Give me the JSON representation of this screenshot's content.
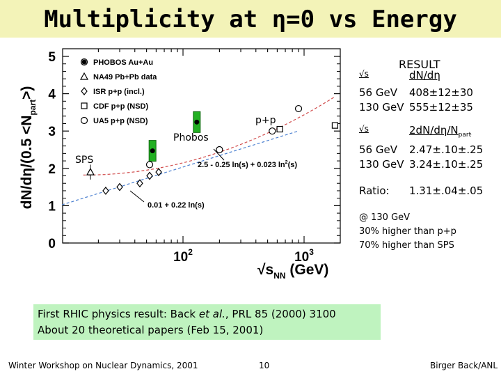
{
  "title": "Multiplicity at η=0 vs Energy",
  "chart_data": {
    "type": "scatter",
    "ylabel": "dN/dη/(0.5 <N",
    "ylabel_sub": "part",
    "ylabel_end": ">)",
    "xlabel": "√s",
    "xlabel_sub": "NN",
    "xlabel_unit": " (GeV)",
    "x_ticks": [
      {
        "base": "10",
        "exp": "2"
      },
      {
        "base": "10",
        "exp": "3"
      }
    ],
    "y_ticks": [
      "0",
      "1",
      "2",
      "3",
      "4",
      "5"
    ],
    "ylim": [
      0,
      5
    ],
    "legend": [
      {
        "marker": "star",
        "label": "PHOBOS Au+Au"
      },
      {
        "marker": "triangle",
        "label": "NA49 Pb+Pb data"
      },
      {
        "marker": "diamond",
        "label": "ISR p+p (incl.)"
      },
      {
        "marker": "square",
        "label": "CDF p+p (NSD)"
      },
      {
        "marker": "circle",
        "label": "UA5 p+p (NSD)"
      }
    ],
    "annotations": {
      "phobos": "Phobos",
      "sps": "SPS",
      "pp": "p+p",
      "fit_high": "2.5 - 0.25 ln(s) + 0.023 ln",
      "fit_high_sup": "2",
      "fit_high_end": "(s)",
      "fit_low": "0.01 + 0.22 ln(s)"
    },
    "series": [
      {
        "name": "PHOBOS Au+Au",
        "marker": "star",
        "x": [
          56,
          130
        ],
        "y": [
          2.47,
          3.24
        ],
        "err": [
          0.25,
          0.25
        ]
      },
      {
        "name": "NA49 Pb+Pb data",
        "marker": "triangle",
        "x": [
          17.2
        ],
        "y": [
          1.9
        ],
        "err": [
          0.2
        ]
      },
      {
        "name": "ISR p+p (incl.)",
        "marker": "diamond",
        "x": [
          23,
          30,
          44,
          53,
          63
        ],
        "y": [
          1.4,
          1.5,
          1.6,
          1.8,
          1.9
        ]
      },
      {
        "name": "CDF p+p (NSD)",
        "marker": "square",
        "x": [
          630,
          1800
        ],
        "y": [
          3.05,
          3.15
        ]
      },
      {
        "name": "UA5 p+p (NSD)",
        "marker": "circle",
        "x": [
          53,
          200,
          546,
          900
        ],
        "y": [
          2.1,
          2.5,
          3.0,
          3.6
        ]
      }
    ],
    "curves": [
      {
        "name": "0.01 + 0.22 ln(s)",
        "a": 0.01,
        "b": 0.22,
        "c": 0
      },
      {
        "name": "2.5 - 0.25 ln(s) + 0.023 ln^2(s)",
        "a": 2.5,
        "b": -0.25,
        "c": 0.023
      }
    ]
  },
  "results": {
    "header": "RESULT",
    "col1_label": "√s",
    "col2_label": "dN/dη",
    "group1": [
      {
        "energy": "56 GeV",
        "value": "408±12±30"
      },
      {
        "energy": "130 GeV",
        "value": "555±12±35"
      }
    ],
    "col2b_label": "2dN/dη/N",
    "col2b_sub": "part",
    "group2": [
      {
        "energy": "56 GeV",
        "value": "2.47±.10±.25"
      },
      {
        "energy": "130 GeV",
        "value": "3.24±.10±.25"
      }
    ],
    "ratio_label": "Ratio:",
    "ratio_value": "1.31±.04±.05",
    "note": [
      "@ 130 GeV",
      "30% higher than p+p",
      "70% higher than SPS"
    ]
  },
  "citation": {
    "line1_before": "First RHIC physics result: Back ",
    "line1_italic": "et al.",
    "line1_after": ", PRL 85 (2000) 3100",
    "line2": "About 20 theoretical  papers (Feb 15, 2001)"
  },
  "footer": {
    "left": "Winter Workshop on Nuclear Dynamics, 2001",
    "center": "10",
    "right": "Birger Back/ANL"
  }
}
